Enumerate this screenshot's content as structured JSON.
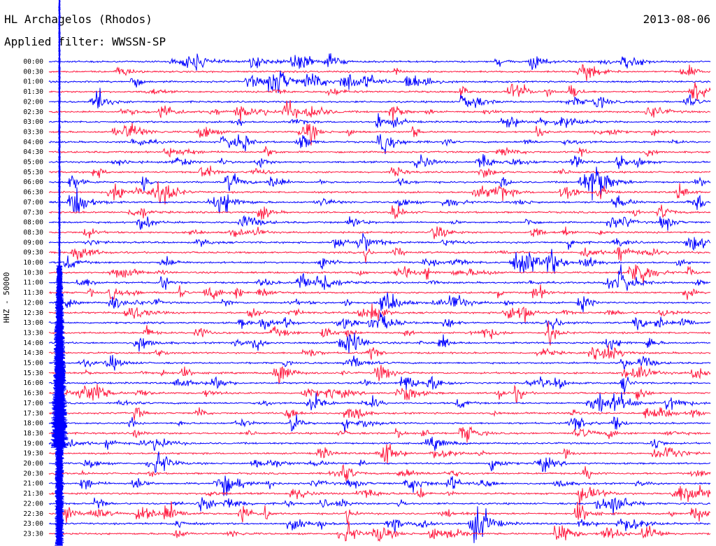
{
  "header": {
    "station": "HL Archagelos (Rhodos)",
    "filter": "Applied filter: WWSSN-SP",
    "date": "2013-08-06"
  },
  "colors": {
    "trace_a": "#0000ff",
    "trace_b": "#ff1a40",
    "text": "#000000"
  },
  "chart_data": {
    "type": "line",
    "title": "HL Archagelos (Rhodos)",
    "subtitle": "Applied filter: WWSSN-SP",
    "date": "2013-08-06",
    "ylabel": "HHZ - 50000",
    "xlabel": "",
    "row_labels": [
      "00:00",
      "00:30",
      "01:00",
      "01:30",
      "02:00",
      "02:30",
      "03:00",
      "03:30",
      "04:00",
      "04:30",
      "05:00",
      "05:30",
      "06:00",
      "06:30",
      "07:00",
      "07:30",
      "08:00",
      "08:30",
      "09:00",
      "09:30",
      "10:00",
      "10:30",
      "11:00",
      "11:30",
      "12:00",
      "12:30",
      "13:00",
      "13:30",
      "14:00",
      "14:30",
      "15:00",
      "15:30",
      "16:00",
      "16:30",
      "17:00",
      "17:30",
      "18:00",
      "18:30",
      "19:00",
      "19:30",
      "20:00",
      "20:30",
      "21:00",
      "21:30",
      "22:00",
      "22:30",
      "23:00",
      "23:30"
    ],
    "grid": false,
    "legend": "none",
    "series": [
      {
        "color": "#0000ff"
      },
      {
        "color": "#ff1a40"
      }
    ]
  }
}
